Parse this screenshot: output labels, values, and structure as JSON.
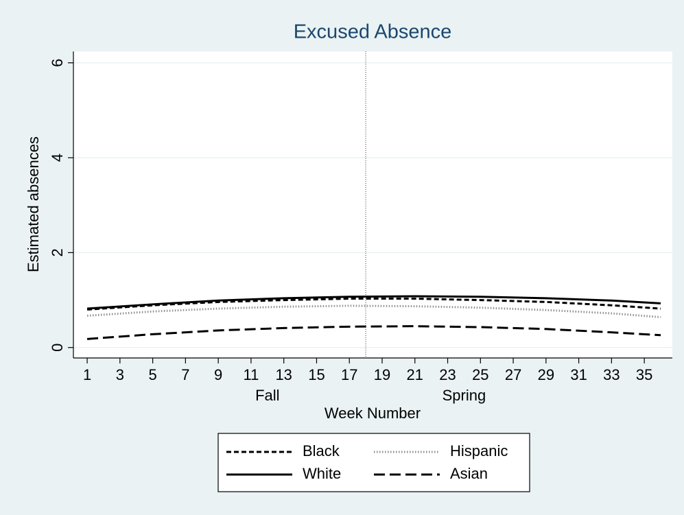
{
  "chart_data": {
    "type": "line",
    "title": "Excused Absence",
    "x_label": "Week Number",
    "y_label": "Estimated absences",
    "x": [
      1,
      5,
      9,
      13,
      17,
      21,
      25,
      29,
      33,
      36
    ],
    "series": [
      {
        "name": "Black",
        "color": "#000000",
        "dash": "short",
        "values": [
          0.8,
          0.89,
          0.96,
          1.0,
          1.03,
          1.03,
          1.0,
          0.96,
          0.89,
          0.82
        ]
      },
      {
        "name": "Hispanic",
        "color": "#8c8c8c",
        "dash": "dot",
        "values": [
          0.67,
          0.76,
          0.82,
          0.86,
          0.88,
          0.87,
          0.84,
          0.79,
          0.72,
          0.64
        ]
      },
      {
        "name": "White",
        "color": "#000000",
        "dash": "solid",
        "values": [
          0.82,
          0.91,
          0.99,
          1.04,
          1.07,
          1.08,
          1.07,
          1.04,
          0.99,
          0.93
        ]
      },
      {
        "name": "Asian",
        "color": "#000000",
        "dash": "long",
        "values": [
          0.18,
          0.28,
          0.36,
          0.41,
          0.44,
          0.45,
          0.43,
          0.39,
          0.32,
          0.26
        ]
      }
    ],
    "xlim": [
      0.16,
      36.71
    ],
    "xticks": [
      1,
      3,
      5,
      7,
      9,
      11,
      13,
      15,
      17,
      19,
      21,
      23,
      25,
      27,
      29,
      31,
      33,
      35
    ],
    "x_period_labels": [
      {
        "value": 12,
        "label": "Fall"
      },
      {
        "value": 24,
        "label": "Spring"
      }
    ],
    "vline": 18,
    "ylim": [
      -0.22,
      6.24
    ],
    "yticks": [
      0,
      2,
      4,
      6
    ],
    "grid": true,
    "legend_columns": 2
  }
}
